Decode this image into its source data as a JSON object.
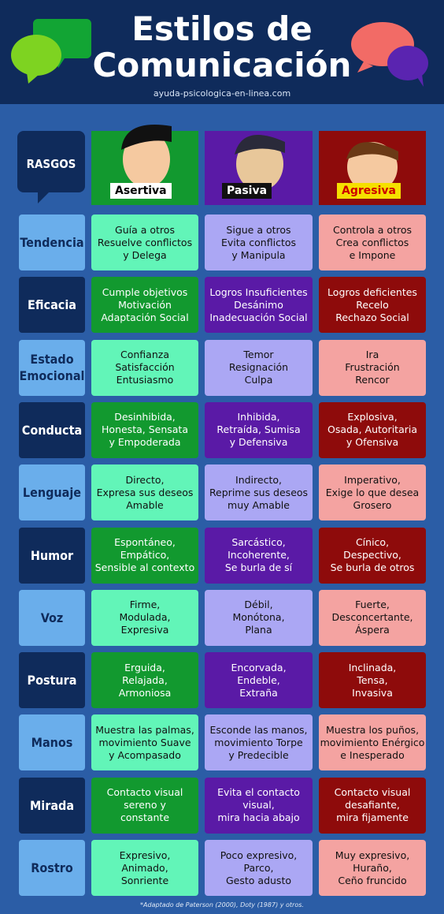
{
  "header": {
    "title": "Estilos de Comunicación",
    "website": "ayuda-psicologica-en-linea.com"
  },
  "corner_label": "RASGOS",
  "columns": [
    "Asertiva",
    "Pasiva",
    "Agresiva"
  ],
  "rows": [
    {
      "label": [
        "Tendencia"
      ],
      "cells": [
        [
          "Guía a otros",
          "Resuelve conflictos",
          "y Delega"
        ],
        [
          "Sigue a otros",
          "Evita conflictos",
          "y Manipula"
        ],
        [
          "Controla a otros",
          "Crea conflictos",
          "e Impone"
        ]
      ]
    },
    {
      "label": [
        "Eficacia"
      ],
      "cells": [
        [
          "Cumple objetivos",
          "Motivación",
          "Adaptación Social"
        ],
        [
          "Logros Insuficientes",
          "Desánimo",
          "Inadecuación Social"
        ],
        [
          "Logros deficientes",
          "Recelo",
          "Rechazo Social"
        ]
      ]
    },
    {
      "label": [
        "Estado",
        "Emocional"
      ],
      "cells": [
        [
          "Confianza",
          "Satisfacción",
          "Entusiasmo"
        ],
        [
          "Temor",
          "Resignación",
          "Culpa"
        ],
        [
          "Ira",
          "Frustración",
          "Rencor"
        ]
      ]
    },
    {
      "label": [
        "Conducta"
      ],
      "cells": [
        [
          "Desinhibida,",
          "Honesta, Sensata",
          "y Empoderada"
        ],
        [
          "Inhibida,",
          "Retraída, Sumisa",
          "y Defensiva"
        ],
        [
          "Explosiva,",
          "Osada, Autoritaria",
          "y Ofensiva"
        ]
      ]
    },
    {
      "label": [
        "Lenguaje"
      ],
      "cells": [
        [
          "Directo,",
          "Expresa sus deseos",
          "Amable"
        ],
        [
          "Indirecto,",
          "Reprime sus deseos",
          "muy Amable"
        ],
        [
          "Imperativo,",
          "Exige lo que desea",
          "Grosero"
        ]
      ]
    },
    {
      "label": [
        "Humor"
      ],
      "cells": [
        [
          "Espontáneo,",
          "Empático,",
          "Sensible al contexto"
        ],
        [
          "Sarcástico,",
          "Incoherente,",
          "Se burla de sí"
        ],
        [
          "Cínico,",
          "Despectivo,",
          "Se burla de otros"
        ]
      ]
    },
    {
      "label": [
        "Voz"
      ],
      "cells": [
        [
          "Firme,",
          "Modulada,",
          "Expresiva"
        ],
        [
          "Débil,",
          "Monótona,",
          "Plana"
        ],
        [
          "Fuerte,",
          "Desconcertante,",
          "Áspera"
        ]
      ]
    },
    {
      "label": [
        "Postura"
      ],
      "cells": [
        [
          "Erguida,",
          "Relajada,",
          "Armoniosa"
        ],
        [
          "Encorvada,",
          "Endeble,",
          "Extraña"
        ],
        [
          "Inclinada,",
          "Tensa,",
          "Invasiva"
        ]
      ]
    },
    {
      "label": [
        "Manos"
      ],
      "cells": [
        [
          "Muestra las palmas,",
          "movimiento Suave",
          "y Acompasado"
        ],
        [
          "Esconde las manos,",
          "movimiento Torpe",
          "y Predecible"
        ],
        [
          "Muestra los puños,",
          "movimiento Enérgico",
          "e Inesperado"
        ]
      ]
    },
    {
      "label": [
        "Mirada"
      ],
      "cells": [
        [
          "Contacto visual",
          "sereno y",
          "constante"
        ],
        [
          "Evita el contacto",
          "visual,",
          "mira hacia abajo"
        ],
        [
          "Contacto visual",
          "desafiante,",
          "mira fijamente"
        ]
      ]
    },
    {
      "label": [
        "Rostro"
      ],
      "cells": [
        [
          "Expresivo,",
          "Animado,",
          "Sonriente"
        ],
        [
          "Poco expresivo,",
          "Parco,",
          "Gesto adusto"
        ],
        [
          "Muy expresivo,",
          "Huraño,",
          "Ceño fruncido"
        ]
      ]
    }
  ],
  "footer": "*Adaptado de Paterson (2000), Doty (1987) y otros."
}
